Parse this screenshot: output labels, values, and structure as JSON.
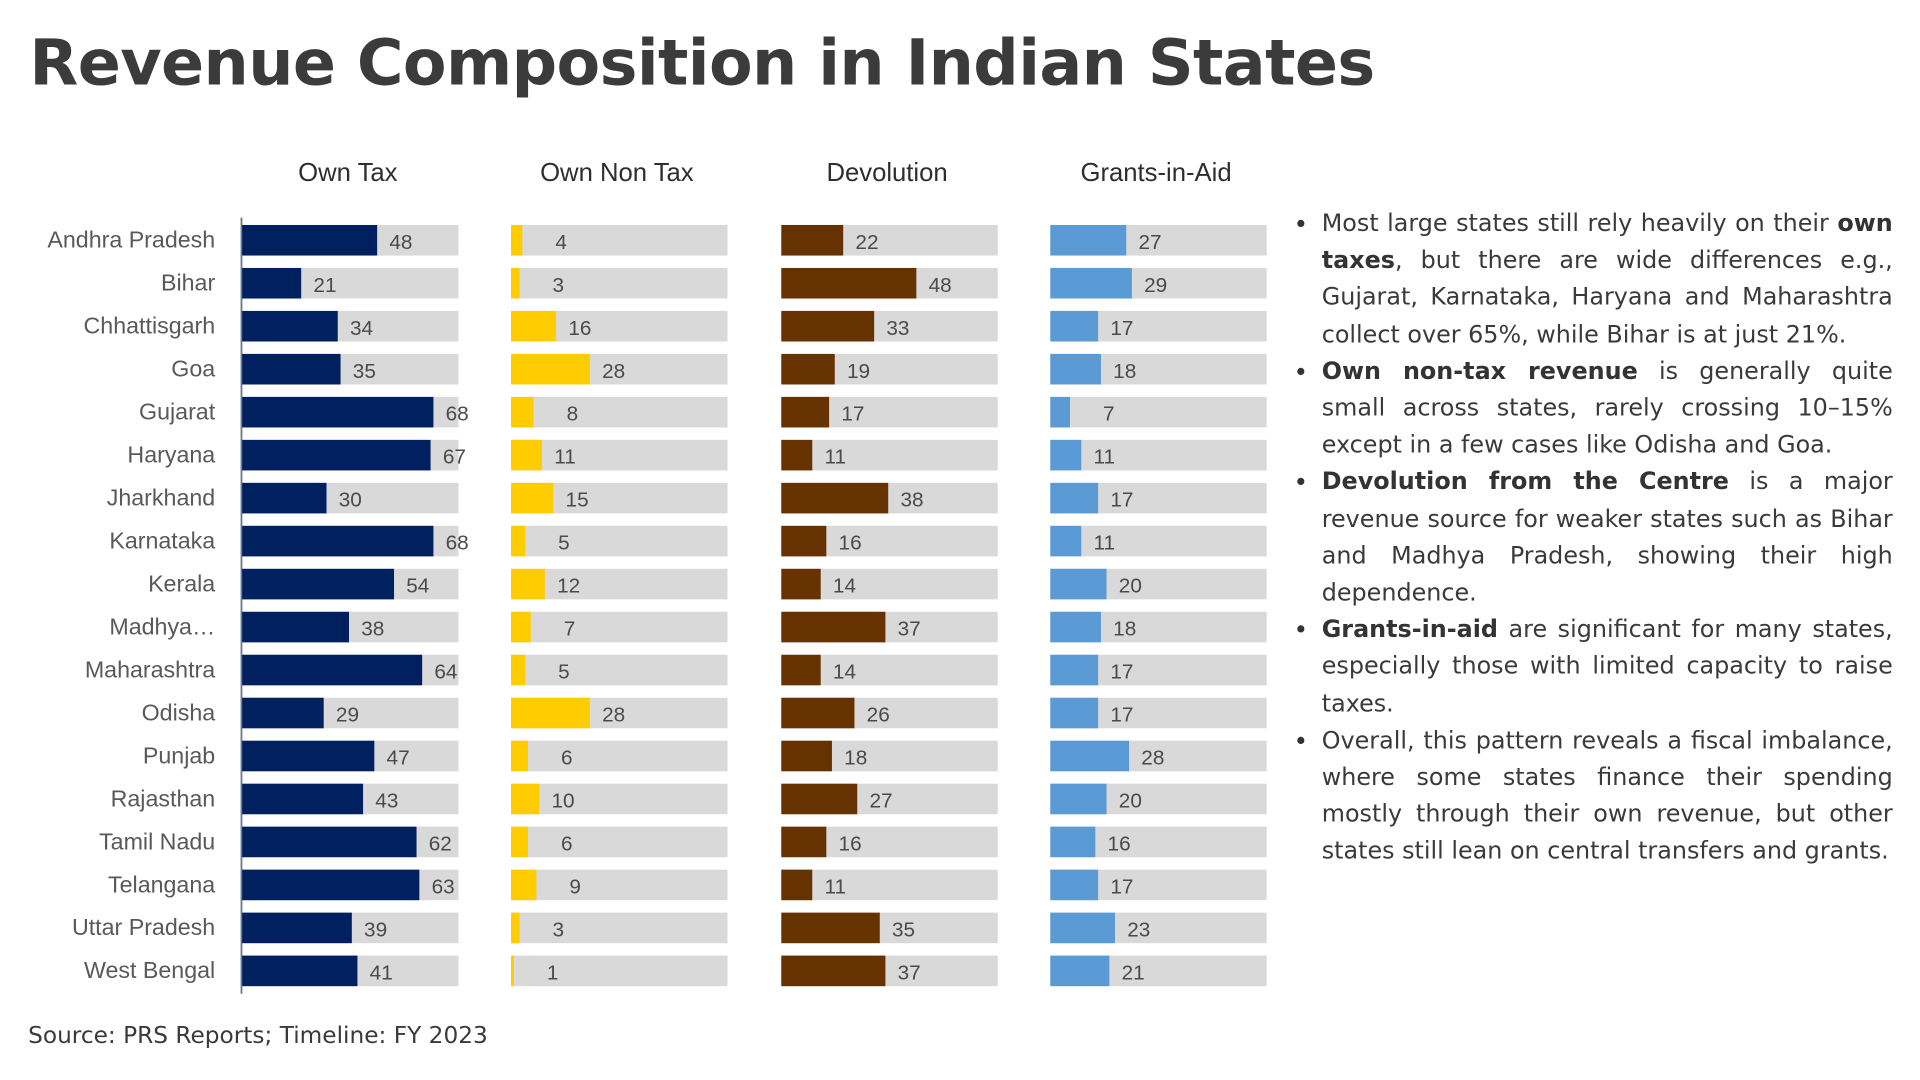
{
  "page": {
    "title": "Revenue Composition in Indian States",
    "source": "Source: PRS Reports; Timeline: FY 2023"
  },
  "colors": {
    "own_tax": "#002060",
    "own_non_tax": "#FFCC00",
    "devolution": "#663300",
    "grants_in_aid": "#5B9BD5",
    "track": "#D9D9D9",
    "text": "#3A3A3A"
  },
  "notes": [
    {
      "bold": "",
      "pre": "Most large states still rely heavily on their ",
      "bold_mid": "own taxes",
      "post": ", but there are wide differences e.g., Gujarat, Karnataka, Haryana and Maharashtra collect over 65%, while Bihar is at just 21%."
    },
    {
      "pre": "",
      "bold_mid": "Own non-tax revenue",
      "post": " is generally quite small across states, rarely crossing 10–15% except in a few cases like Odisha and Goa."
    },
    {
      "pre": "",
      "bold_mid": "Devolution from the Centre",
      "post": " is a major revenue source for weaker states such as Bihar and Madhya Pradesh, showing their high dependence."
    },
    {
      "pre": "",
      "bold_mid": "Grants-in-aid",
      "post": " are significant for many states, especially those with limited capacity to raise taxes."
    },
    {
      "pre": "Overall, this pattern reveals a fiscal imbalance, where some states finance their spending mostly through their own revenue, but other states still lean on central transfers and grants.",
      "bold_mid": "",
      "post": ""
    }
  ],
  "chart_data": {
    "type": "bar",
    "orientation": "horizontal",
    "layout": "small-multiples",
    "title": "Revenue Composition in Indian States",
    "xlabel": "",
    "ylabel": "",
    "unit": "% of revenue",
    "xlim": [
      0,
      100
    ],
    "grid": false,
    "legend": "none",
    "categories": [
      "Andhra Pradesh",
      "Bihar",
      "Chhattisgarh",
      "Goa",
      "Gujarat",
      "Haryana",
      "Jharkhand",
      "Karnataka",
      "Kerala",
      "Madhya…",
      "Maharashtra",
      "Odisha",
      "Punjab",
      "Rajasthan",
      "Tamil Nadu",
      "Telangana",
      "Uttar Pradesh",
      "West Bengal"
    ],
    "series": [
      {
        "name": "Own Tax",
        "color": "#002060",
        "values": [
          48,
          21,
          34,
          35,
          68,
          67,
          30,
          68,
          54,
          38,
          64,
          29,
          47,
          43,
          62,
          63,
          39,
          41
        ]
      },
      {
        "name": "Own Non Tax",
        "color": "#FFCC00",
        "values": [
          4,
          3,
          16,
          28,
          8,
          11,
          15,
          5,
          12,
          7,
          5,
          28,
          6,
          10,
          6,
          9,
          3,
          1
        ]
      },
      {
        "name": "Devolution",
        "color": "#663300",
        "values": [
          22,
          48,
          33,
          19,
          17,
          11,
          38,
          16,
          14,
          37,
          14,
          26,
          18,
          27,
          16,
          11,
          35,
          37
        ]
      },
      {
        "name": "Grants-in-Aid",
        "color": "#5B9BD5",
        "values": [
          27,
          29,
          17,
          18,
          7,
          11,
          17,
          11,
          20,
          18,
          17,
          17,
          28,
          20,
          16,
          17,
          23,
          21
        ]
      }
    ]
  }
}
